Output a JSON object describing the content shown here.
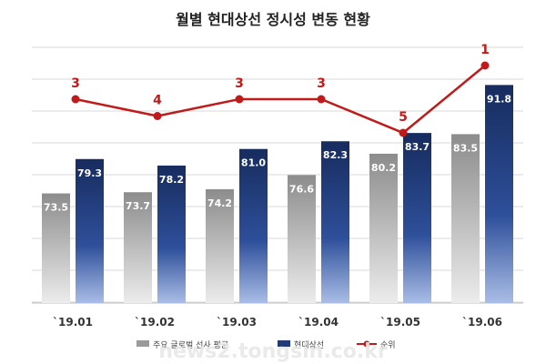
{
  "chart_data": {
    "type": "bar",
    "title": "월별 현대상선 정시성 변동 현황",
    "categories": [
      "`19.01",
      "`19.02",
      "`19.03",
      "`19.04",
      "`19.05",
      "`19.06"
    ],
    "series": [
      {
        "name": "주요 글로벌 선사 평균",
        "kind": "bar",
        "values": [
          73.5,
          73.7,
          74.2,
          76.6,
          80.2,
          83.5
        ],
        "color": "#9a9a9a"
      },
      {
        "name": "현대상선",
        "kind": "bar",
        "values": [
          79.3,
          78.2,
          81.0,
          82.3,
          83.7,
          91.8
        ],
        "color": "#1f3a78"
      },
      {
        "name": "순위",
        "kind": "line",
        "values": [
          3,
          4,
          3,
          3,
          5,
          1
        ],
        "color": "#c01a1a"
      }
    ],
    "ylim": [
      55,
      100
    ],
    "rank_lim": [
      0,
      6
    ],
    "grid": true,
    "legend": "bottom"
  },
  "watermark": "news2.tongsin.co.kr"
}
